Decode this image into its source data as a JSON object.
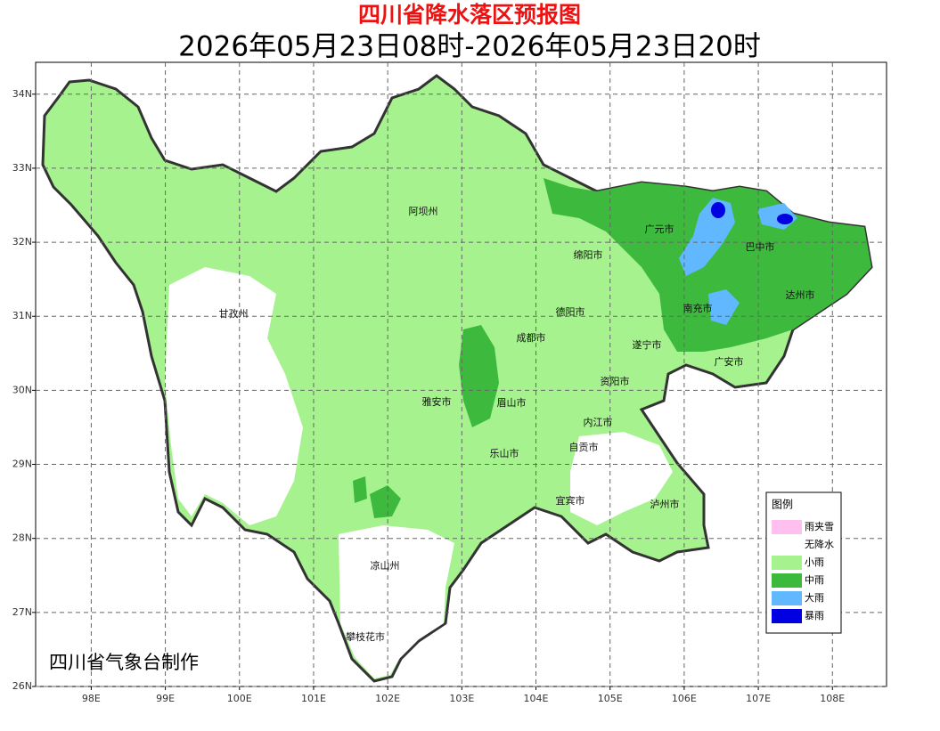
{
  "header": {
    "title": "四川省降水落区预报图",
    "subtitle": "2026年05月23日08时-2026年05月23日20时"
  },
  "map": {
    "xlim": [
      97.25,
      108.73
    ],
    "ylim": [
      26,
      34.43
    ],
    "grid": true,
    "xticks": [
      {
        "value": 98,
        "label": "98E"
      },
      {
        "value": 99,
        "label": "99E"
      },
      {
        "value": 100,
        "label": "100E"
      },
      {
        "value": 101,
        "label": "101E"
      },
      {
        "value": 102,
        "label": "102E"
      },
      {
        "value": 103,
        "label": "103E"
      },
      {
        "value": 104,
        "label": "104E"
      },
      {
        "value": 105,
        "label": "105E"
      },
      {
        "value": 106,
        "label": "106E"
      },
      {
        "value": 107,
        "label": "107E"
      },
      {
        "value": 108,
        "label": "108E"
      }
    ],
    "yticks": [
      {
        "value": 26,
        "label": "26N"
      },
      {
        "value": 27,
        "label": "27N"
      },
      {
        "value": 28,
        "label": "28N"
      },
      {
        "value": 29,
        "label": "29N"
      },
      {
        "value": 30,
        "label": "30N"
      },
      {
        "value": 31,
        "label": "31N"
      },
      {
        "value": 32,
        "label": "32N"
      },
      {
        "value": 33,
        "label": "33N"
      },
      {
        "value": 34,
        "label": "34N"
      }
    ],
    "regions": [
      "阿坝州",
      "甘孜州",
      "广元市",
      "巴中市",
      "绵阳市",
      "达州市",
      "德阳市",
      "南充市",
      "成都市",
      "遂宁市",
      "广安市",
      "资阳市",
      "雅安市",
      "眉山市",
      "内江市",
      "自贡市",
      "乐山市",
      "宜宾市",
      "泸州市",
      "凉山州",
      "攀枝花市"
    ]
  },
  "legend": {
    "title": "图例",
    "items": [
      {
        "label": "雨夹雪",
        "color": "#ffc0f0"
      },
      {
        "label": "无降水",
        "color": "#ffffff"
      },
      {
        "label": "小雨",
        "color": "#a6f28f"
      },
      {
        "label": "中雨",
        "color": "#3dba3d"
      },
      {
        "label": "大雨",
        "color": "#61b8ff"
      },
      {
        "label": "暴雨",
        "color": "#0000e1"
      }
    ]
  },
  "credit": "四川省气象台制作"
}
